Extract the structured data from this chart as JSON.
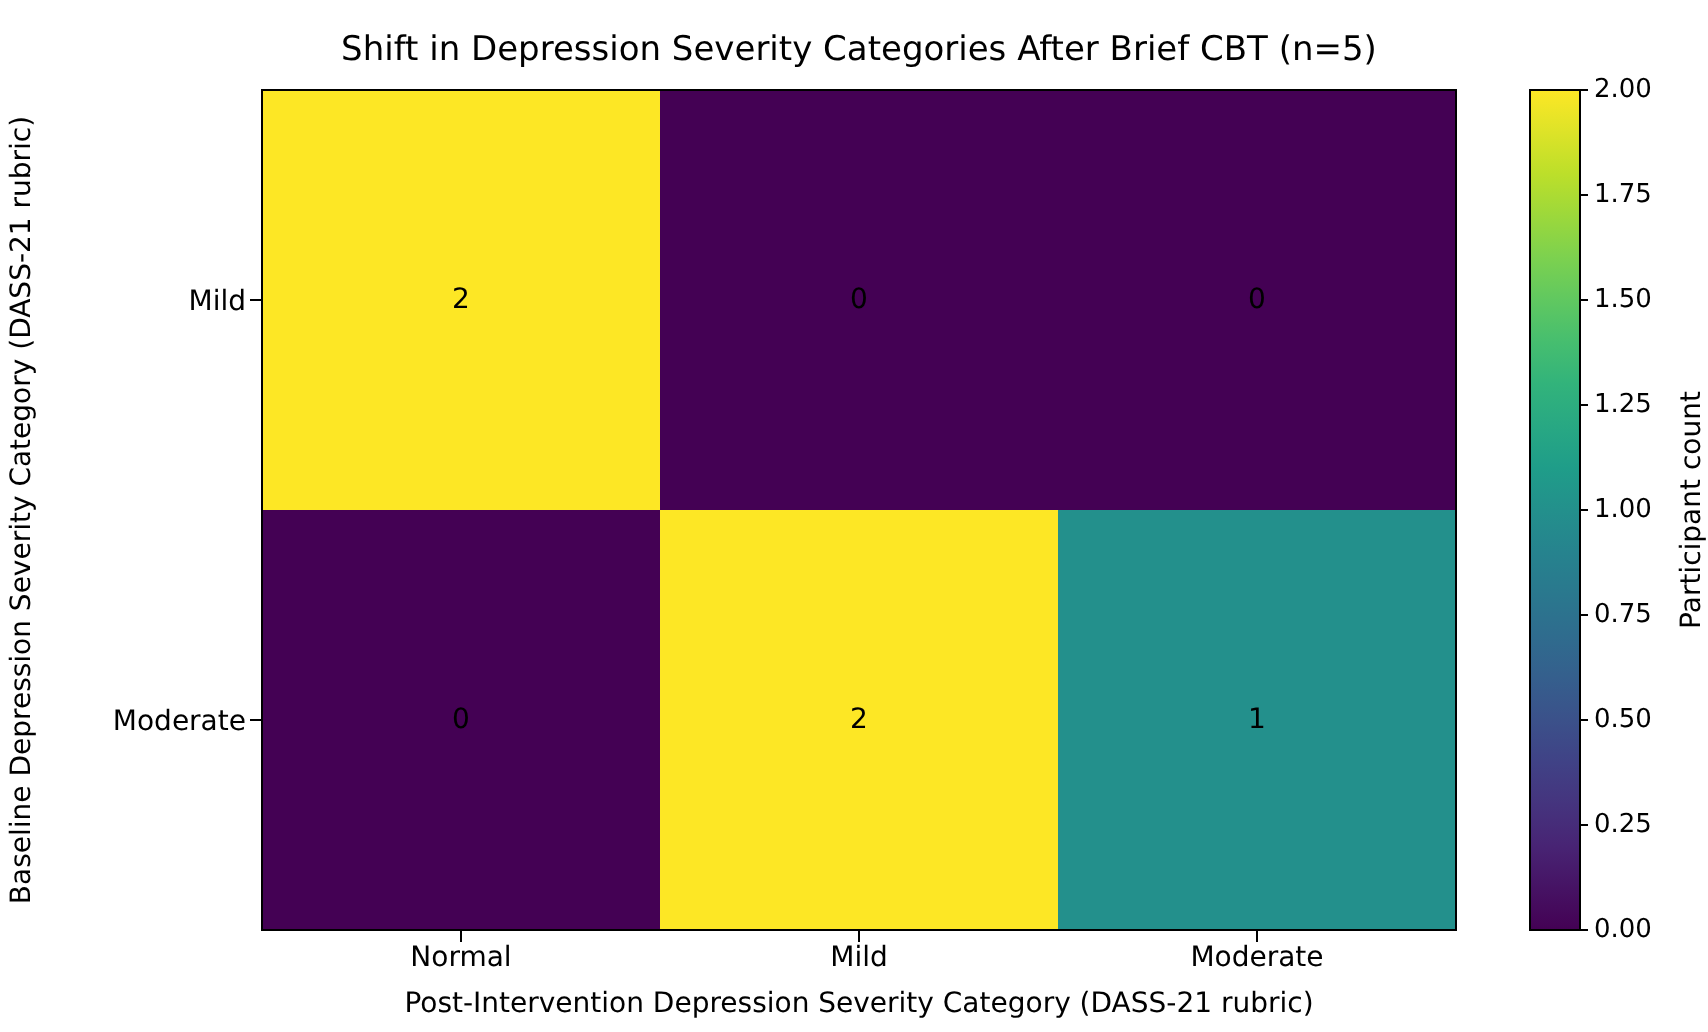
{
  "chart_data": {
    "type": "heatmap",
    "title": "Shift in Depression Severity Categories After Brief CBT (n=5)",
    "xlabel": "Post-Intervention Depression Severity Category (DASS-21 rubric)",
    "ylabel": "Baseline Depression Severity Category (DASS-21 rubric)",
    "clabel": "Participant count",
    "categories": [
      "Normal",
      "Mild",
      "Moderate"
    ],
    "y_categories": [
      "Mild",
      "Moderate"
    ],
    "cells": [
      [
        2,
        0,
        0
      ],
      [
        0,
        2,
        1
      ]
    ],
    "clim": [
      0,
      2
    ],
    "cticks": [
      {
        "value": 0,
        "label": "0.00"
      },
      {
        "value": 0.25,
        "label": "0.25"
      },
      {
        "value": 0.5,
        "label": "0.50"
      },
      {
        "value": 0.75,
        "label": "0.75"
      },
      {
        "value": 1,
        "label": "1.00"
      },
      {
        "value": 1.25,
        "label": "1.25"
      },
      {
        "value": 1.5,
        "label": "1.50"
      },
      {
        "value": 1.75,
        "label": "1.75"
      },
      {
        "value": 2,
        "label": "2.00"
      }
    ],
    "data_labels": true
  }
}
